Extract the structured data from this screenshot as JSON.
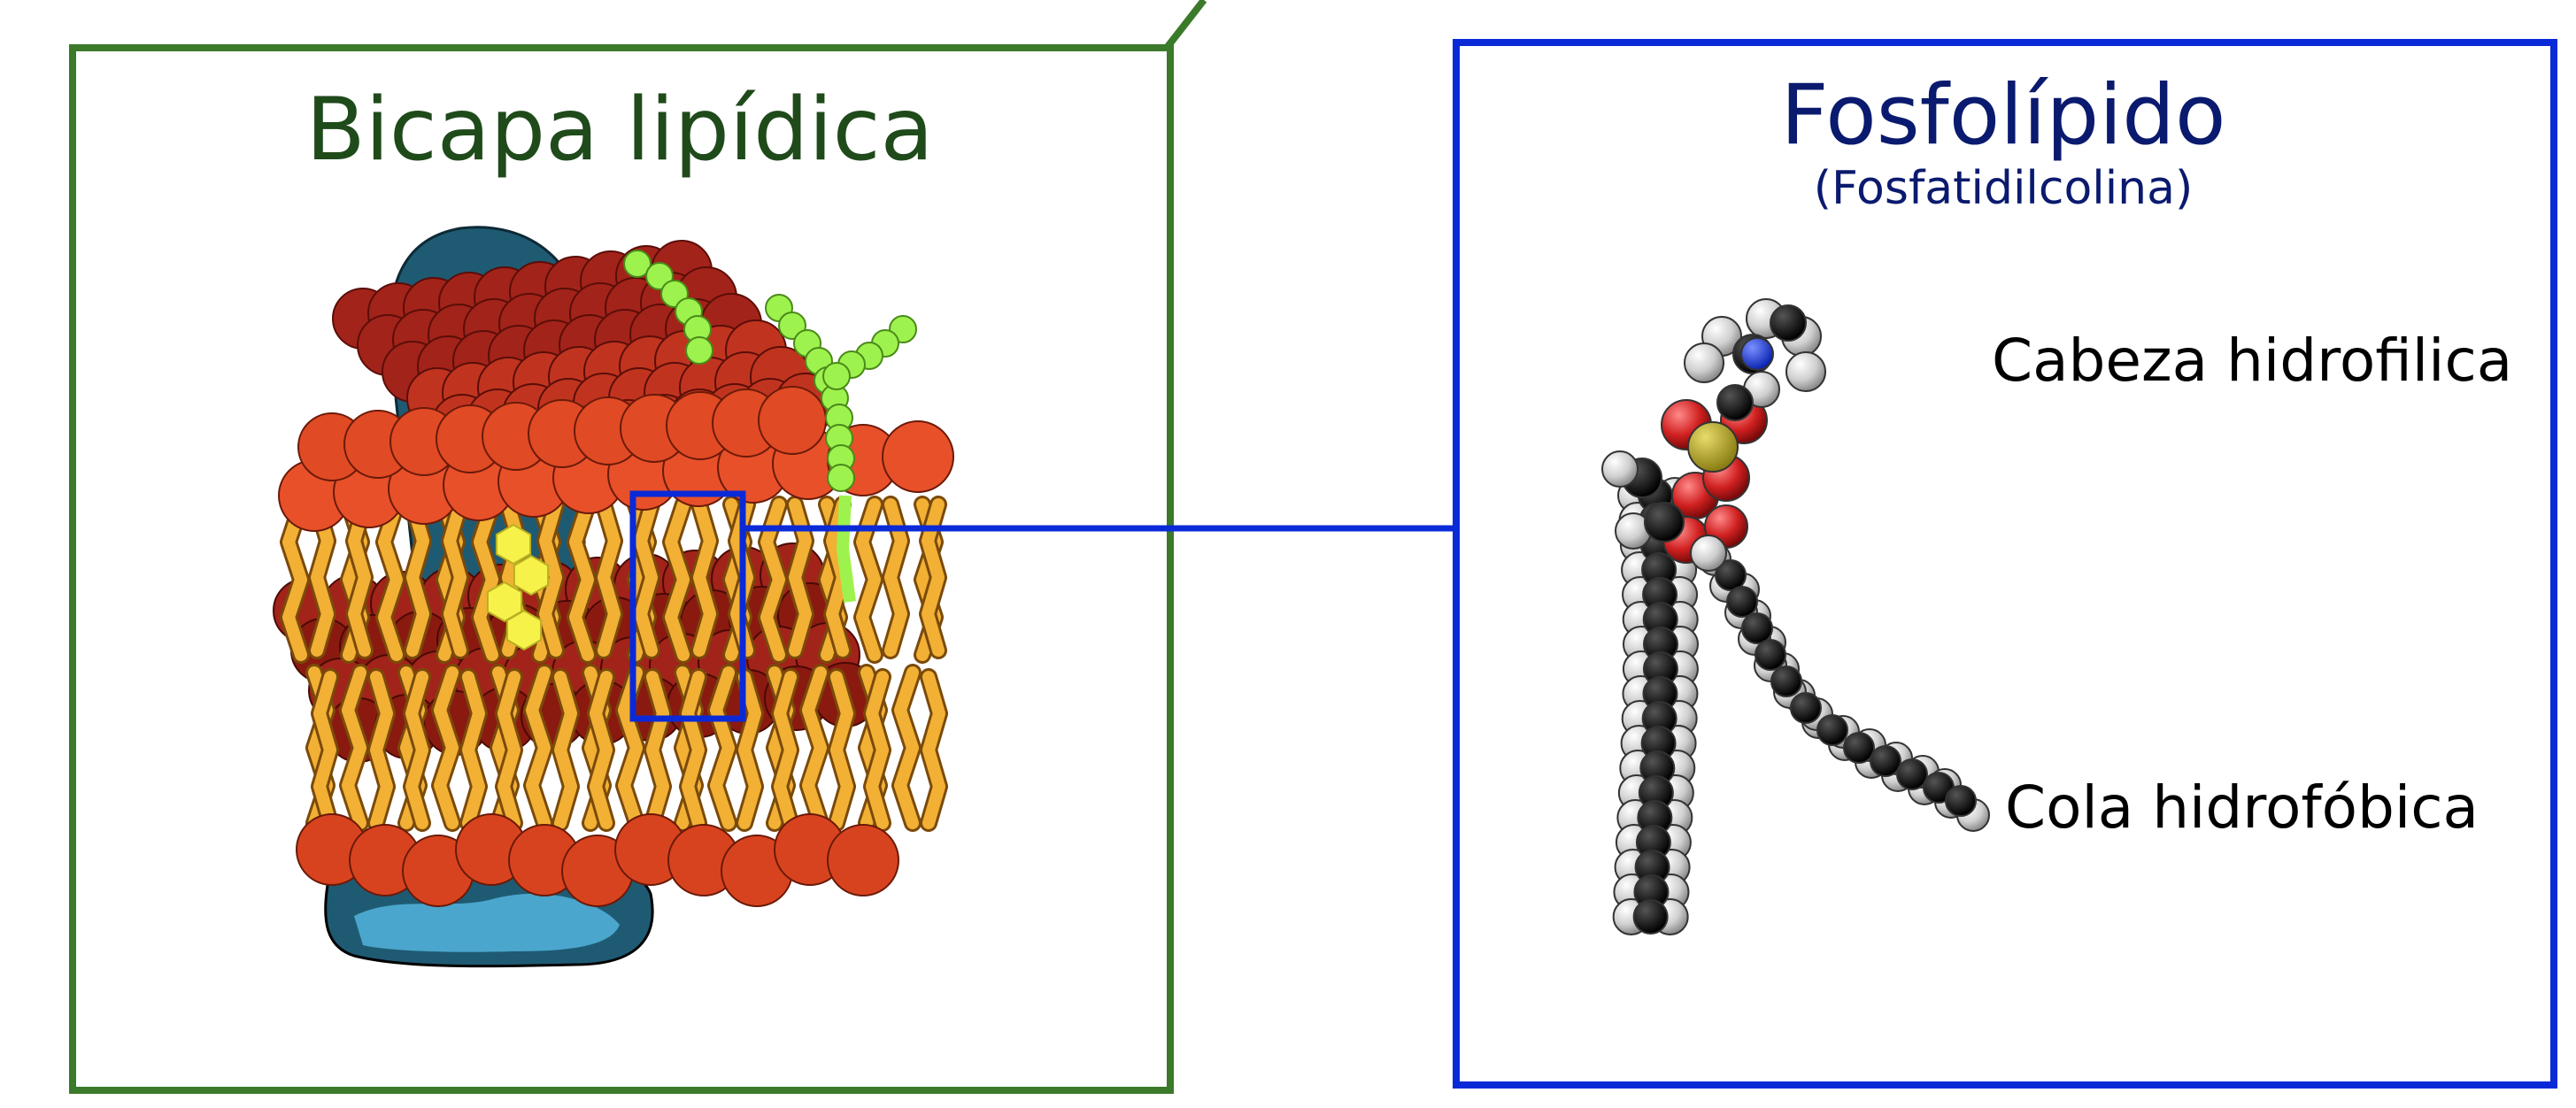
{
  "bilayer_panel": {
    "title": "Bicapa lipídica",
    "border_color": "#3b7a2a",
    "title_color": "#1f4a1a"
  },
  "phospholipid_panel": {
    "title": "Fosfolípido",
    "subtitle": "(Fosfatidilcolina)",
    "border_color": "#0a2ad8",
    "title_color": "#0a1a6e",
    "labels": {
      "head": "Cabeza hidrofilica",
      "tail": "Cola hidrofóbica"
    }
  },
  "colors": {
    "head_bright": "#e8502a",
    "head_dark": "#8a1a10",
    "tail": "#f2b035",
    "protein_dark": "#1f5a73",
    "protein_light": "#4aa6cc",
    "cholesterol": "#f7f24a",
    "glycan": "#9ef24d",
    "carbon": "#111111",
    "hydrogen": "#d8d8d8",
    "oxygen": "#cc2222",
    "phosphorus": "#b5a52a",
    "nitrogen": "#1f3fe0"
  }
}
